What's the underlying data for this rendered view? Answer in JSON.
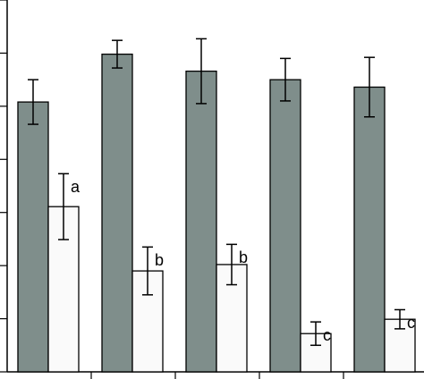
{
  "chart_data": {
    "type": "bar",
    "categories": [
      null,
      null,
      null,
      null,
      null
    ],
    "series": [
      {
        "color": "#7f8e8b",
        "values": [
          5.08,
          5.98,
          5.66,
          5.5,
          5.36
        ],
        "errors": [
          0.42,
          0.26,
          0.61,
          0.4,
          0.56
        ]
      },
      {
        "color": "#fafafa",
        "values": [
          3.11,
          1.9,
          2.02,
          0.72,
          0.99
        ],
        "errors": [
          0.62,
          0.45,
          0.38,
          0.22,
          0.18
        ],
        "annotations": [
          "a",
          "b",
          "b",
          "c",
          "c"
        ]
      }
    ],
    "ylim": [
      0,
      7
    ],
    "yticks": [
      0,
      1,
      2,
      3,
      4,
      5,
      6,
      7
    ],
    "grid": false
  }
}
